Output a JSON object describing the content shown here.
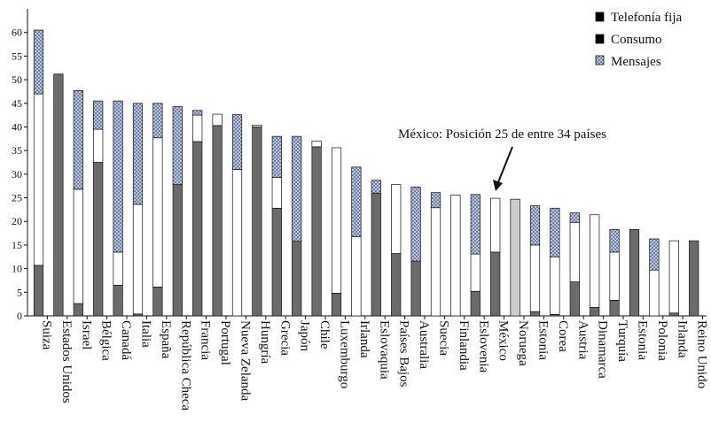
{
  "chart_data": {
    "type": "bar",
    "stacked": true,
    "title": "",
    "xlabel": "",
    "ylabel": "",
    "ylim": [
      0,
      65
    ],
    "yticks": [
      0,
      5,
      10,
      15,
      20,
      25,
      30,
      35,
      40,
      45,
      50,
      55,
      60
    ],
    "grid": false,
    "legend_position": "top-right",
    "categories": [
      "Suiza",
      "Estados Unidos",
      "Israel",
      "Bélgica",
      "Canadá",
      "Italia",
      "España",
      "República Checa",
      "Francia",
      "Portugal",
      "Nueva Zelanda",
      "Hungría",
      "Grecia",
      "Japón",
      "Chile",
      "Luxemburgo",
      "Irlanda",
      "Eslovaquia",
      "Países Bajos",
      "Australia",
      "Suecia",
      "Finlandia",
      "Eslovenia",
      "México",
      "Noruega",
      "Estonia",
      "Corea",
      "Austria",
      "Dinamarca",
      "Turquía",
      "Estonia",
      "Polonia",
      "Irlanda",
      "Reino Unido"
    ],
    "series": [
      {
        "name": "Telefonía fija",
        "color": "#6b6b6b",
        "values": [
          10.7,
          51.2,
          2.6,
          32.5,
          6.5,
          0.4,
          6.1,
          27.8,
          36.9,
          40.3,
          0,
          40.0,
          22.8,
          15.8,
          35.8,
          4.8,
          0,
          26.0,
          13.2,
          11.6,
          0,
          0,
          5.2,
          13.5,
          0,
          0.9,
          0.3,
          7.2,
          1.8,
          3.3,
          18.3,
          0,
          0.6,
          15.9
        ]
      },
      {
        "name": "Consumo",
        "color": "#ffffff",
        "values": [
          36.3,
          0,
          24.2,
          7.0,
          7.0,
          23.2,
          31.6,
          0,
          5.6,
          2.4,
          31.0,
          0.4,
          6.5,
          0,
          1.2,
          30.8,
          16.8,
          0,
          14.6,
          0,
          22.9,
          25.6,
          7.9,
          11.4,
          0,
          14.1,
          12.2,
          12.6,
          19.6,
          10.2,
          0,
          9.7,
          15.3,
          0
        ]
      },
      {
        "name": "Mensajes",
        "color": "#c9d3e6",
        "values": [
          13.5,
          0,
          20.9,
          6.0,
          32.0,
          21.4,
          7.3,
          16.5,
          1.0,
          0,
          11.6,
          0,
          8.7,
          22.2,
          0,
          0,
          14.7,
          2.7,
          0,
          15.7,
          3.2,
          0,
          12.6,
          0,
          0,
          8.3,
          10.3,
          2.0,
          0,
          4.8,
          0,
          6.6,
          0,
          0
        ]
      }
    ],
    "highlight": {
      "category_index": 24,
      "color": "#cccccc",
      "value": 24.7
    },
    "annotation": {
      "text": "México: Posición 25 de entre 34 países",
      "points_to": "México"
    }
  }
}
